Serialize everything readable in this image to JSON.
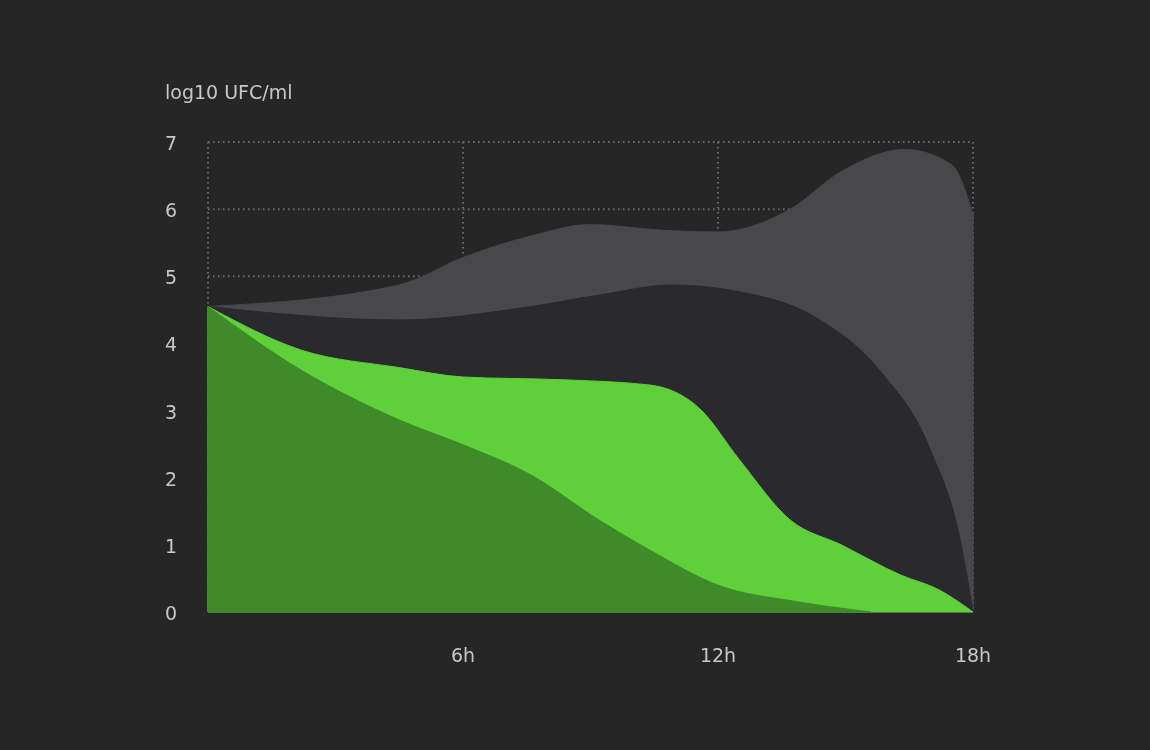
{
  "chart_data": {
    "type": "area",
    "ylabel": "log10 UFC/ml",
    "xlim": [
      0,
      18
    ],
    "ylim": [
      0,
      7
    ],
    "xticks": [
      {
        "value": 0,
        "label": null
      },
      {
        "value": 6,
        "label": "6h"
      },
      {
        "value": 12,
        "label": "12h"
      },
      {
        "value": 18,
        "label": "18h"
      }
    ],
    "yticks": [
      0,
      1,
      2,
      3,
      4,
      5,
      6,
      7
    ],
    "grid": true,
    "series": [
      {
        "color": "#48484a",
        "x": [
          0,
          2.2,
          4.5,
          6,
          7.6,
          9,
          10.6,
          12,
          13.7,
          14.9,
          16.4,
          17.5,
          18
        ],
        "values": [
          4.55,
          null,
          4.87,
          5.28,
          5.6,
          5.77,
          5.69,
          5.66,
          6.0,
          6.56,
          6.89,
          6.66,
          5.92
        ]
      },
      {
        "color": "#2a2a2c",
        "x": [
          0,
          4.5,
          7.6,
          9.2,
          10.9,
          12.5,
          14.4,
          15.8,
          17,
          17.7,
          18
        ],
        "values": [
          4.55,
          4.35,
          4.55,
          4.72,
          4.87,
          4.77,
          4.35,
          3.6,
          2.41,
          1.07,
          0
        ]
      },
      {
        "color": "#5fcf3a",
        "x": [
          0,
          2.2,
          4.5,
          6,
          8.3,
          10.4,
          11.6,
          12.5,
          13.7,
          14.9,
          16.3,
          17.2,
          18
        ],
        "values": [
          4.55,
          3.9,
          3.64,
          3.5,
          3.46,
          3.38,
          3.01,
          2.27,
          1.37,
          1.0,
          0.55,
          0.33,
          0
        ]
      },
      {
        "color": "#3f8a2a",
        "x": [
          0,
          2.2,
          4.5,
          6,
          7.6,
          9.2,
          10.4,
          12,
          13.9,
          15.6
        ],
        "values": [
          4.55,
          3.6,
          2.86,
          2.49,
          2.04,
          1.37,
          0.92,
          0.4,
          0.15,
          0
        ]
      }
    ]
  }
}
